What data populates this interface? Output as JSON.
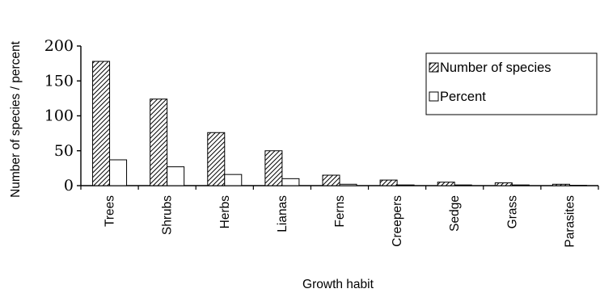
{
  "chart_data": {
    "type": "bar",
    "xlabel": "Growth habit",
    "ylabel": "Number of species / percent",
    "ylim": [
      0,
      200
    ],
    "yticks": [
      0,
      50,
      100,
      150,
      200
    ],
    "grid": false,
    "legend_position": "top-right",
    "categories": [
      "Trees",
      "Shrubs",
      "Herbs",
      "Lianas",
      "Ferns",
      "Creepers",
      "Sedge",
      "Grass",
      "Parasites"
    ],
    "series": [
      {
        "name": "Number of species",
        "pattern": "diagonal-hatch",
        "values": [
          178,
          124,
          76,
          50,
          15,
          8,
          5,
          4,
          2
        ]
      },
      {
        "name": "Percent",
        "pattern": "white",
        "values": [
          37,
          27,
          16,
          10,
          2,
          1,
          1,
          1,
          0.5
        ]
      }
    ]
  }
}
